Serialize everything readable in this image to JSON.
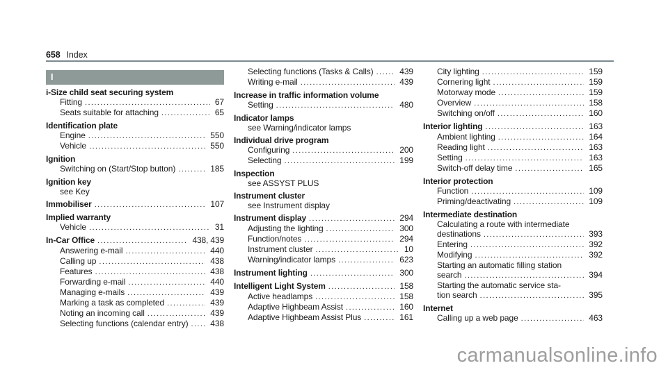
{
  "header": {
    "page_number": "658",
    "title": "Index"
  },
  "section": {
    "letter": "I"
  },
  "watermark": "carmanualsonline.info",
  "colors": {
    "section_bar": "#8e9a97",
    "header_rule": "#7b898f",
    "text": "#1c1c1c",
    "watermark": "#9e9e9e"
  },
  "columns": [
    {
      "items": [
        {
          "type": "main",
          "label": "i-Size child seat securing system"
        },
        {
          "type": "sub",
          "label": "Fitting",
          "page": "67"
        },
        {
          "type": "sub",
          "label": "Seats suitable for attaching",
          "page": "65"
        },
        {
          "type": "main",
          "label": "Identification plate"
        },
        {
          "type": "sub",
          "label": "Engine",
          "page": "550"
        },
        {
          "type": "sub",
          "label": "Vehicle",
          "page": "550"
        },
        {
          "type": "main",
          "label": "Ignition"
        },
        {
          "type": "sub",
          "label": "Switching on (Start/Stop button)",
          "page": "185"
        },
        {
          "type": "main",
          "label": "Ignition key"
        },
        {
          "type": "see",
          "label": "see Key"
        },
        {
          "type": "main",
          "label": "Immobiliser",
          "page": "107"
        },
        {
          "type": "main",
          "label": "Implied warranty"
        },
        {
          "type": "sub",
          "label": "Vehicle",
          "page": "31"
        },
        {
          "type": "main",
          "label": "In-Car Office",
          "page": "438, 439"
        },
        {
          "type": "sub",
          "label": "Answering e-mail",
          "page": "440"
        },
        {
          "type": "sub",
          "label": "Calling up",
          "page": "438"
        },
        {
          "type": "sub",
          "label": "Features",
          "page": "438"
        },
        {
          "type": "sub",
          "label": "Forwarding e-mail",
          "page": "440"
        },
        {
          "type": "sub",
          "label": "Managing e-mails",
          "page": "439"
        },
        {
          "type": "sub",
          "label": "Marking a task as completed",
          "page": "439"
        },
        {
          "type": "sub",
          "label": "Noting an incoming call",
          "page": "439"
        },
        {
          "type": "sub",
          "label": "Selecting functions (calendar entry)",
          "page": "438"
        }
      ]
    },
    {
      "items": [
        {
          "type": "sub",
          "label": "Selecting functions (Tasks & Calls)",
          "page": "439"
        },
        {
          "type": "sub",
          "label": "Writing e-mail",
          "page": "439"
        },
        {
          "type": "main",
          "label": "Increase in traffic information volume"
        },
        {
          "type": "sub",
          "label": "Setting",
          "page": "480"
        },
        {
          "type": "main",
          "label": "Indicator lamps"
        },
        {
          "type": "see",
          "label": "see Warning/indicator lamps"
        },
        {
          "type": "main",
          "label": "Individual drive program"
        },
        {
          "type": "sub",
          "label": "Configuring",
          "page": "200"
        },
        {
          "type": "sub",
          "label": "Selecting",
          "page": "199"
        },
        {
          "type": "main",
          "label": "Inspection"
        },
        {
          "type": "see",
          "label": "see ASSYST PLUS"
        },
        {
          "type": "main",
          "label": "Instrument cluster"
        },
        {
          "type": "see",
          "label": "see Instrument display"
        },
        {
          "type": "main",
          "label": "Instrument display",
          "page": "294"
        },
        {
          "type": "sub",
          "label": "Adjusting the lighting",
          "page": "300"
        },
        {
          "type": "sub",
          "label": "Function/notes",
          "page": "294"
        },
        {
          "type": "sub",
          "label": "Instrument cluster",
          "page": "10"
        },
        {
          "type": "sub",
          "label": "Warning/indicator lamps",
          "page": "623"
        },
        {
          "type": "main",
          "label": "Instrument lighting",
          "page": "300"
        },
        {
          "type": "main",
          "label": "Intelligent Light System",
          "page": "158"
        },
        {
          "type": "sub",
          "label": "Active headlamps",
          "page": "158"
        },
        {
          "type": "sub",
          "label": "Adaptive Highbeam Assist",
          "page": "160"
        },
        {
          "type": "sub",
          "label": "Adaptive Highbeam Assist Plus",
          "page": "161"
        }
      ]
    },
    {
      "items": [
        {
          "type": "sub",
          "label": "City lighting",
          "page": "159"
        },
        {
          "type": "sub",
          "label": "Cornering light",
          "page": "159"
        },
        {
          "type": "sub",
          "label": "Motorway mode",
          "page": "159"
        },
        {
          "type": "sub",
          "label": "Overview",
          "page": "158"
        },
        {
          "type": "sub",
          "label": "Switching on/off",
          "page": "160"
        },
        {
          "type": "main",
          "label": "Interior lighting",
          "page": "163"
        },
        {
          "type": "sub",
          "label": "Ambient lighting",
          "page": "164"
        },
        {
          "type": "sub",
          "label": "Reading light",
          "page": "163"
        },
        {
          "type": "sub",
          "label": "Setting",
          "page": "163"
        },
        {
          "type": "sub",
          "label": "Switch-off delay time",
          "page": "165"
        },
        {
          "type": "main",
          "label": "Interior protection"
        },
        {
          "type": "sub",
          "label": "Function",
          "page": "109"
        },
        {
          "type": "sub",
          "label": "Priming/deactivating",
          "page": "109"
        },
        {
          "type": "main",
          "label": "Intermediate destination"
        },
        {
          "type": "sub",
          "label": "Calculating a route with intermediate"
        },
        {
          "type": "cont",
          "label": "destinations",
          "page": "393"
        },
        {
          "type": "sub",
          "label": "Entering",
          "page": "392"
        },
        {
          "type": "sub",
          "label": "Modifying",
          "page": "392"
        },
        {
          "type": "sub",
          "label": "Starting an automatic filling station"
        },
        {
          "type": "cont",
          "label": "search",
          "page": "394"
        },
        {
          "type": "sub",
          "label": "Starting the automatic service sta-"
        },
        {
          "type": "cont",
          "label": "tion search",
          "page": "395"
        },
        {
          "type": "main",
          "label": "Internet"
        },
        {
          "type": "sub",
          "label": "Calling up a web page",
          "page": "463"
        }
      ]
    }
  ]
}
